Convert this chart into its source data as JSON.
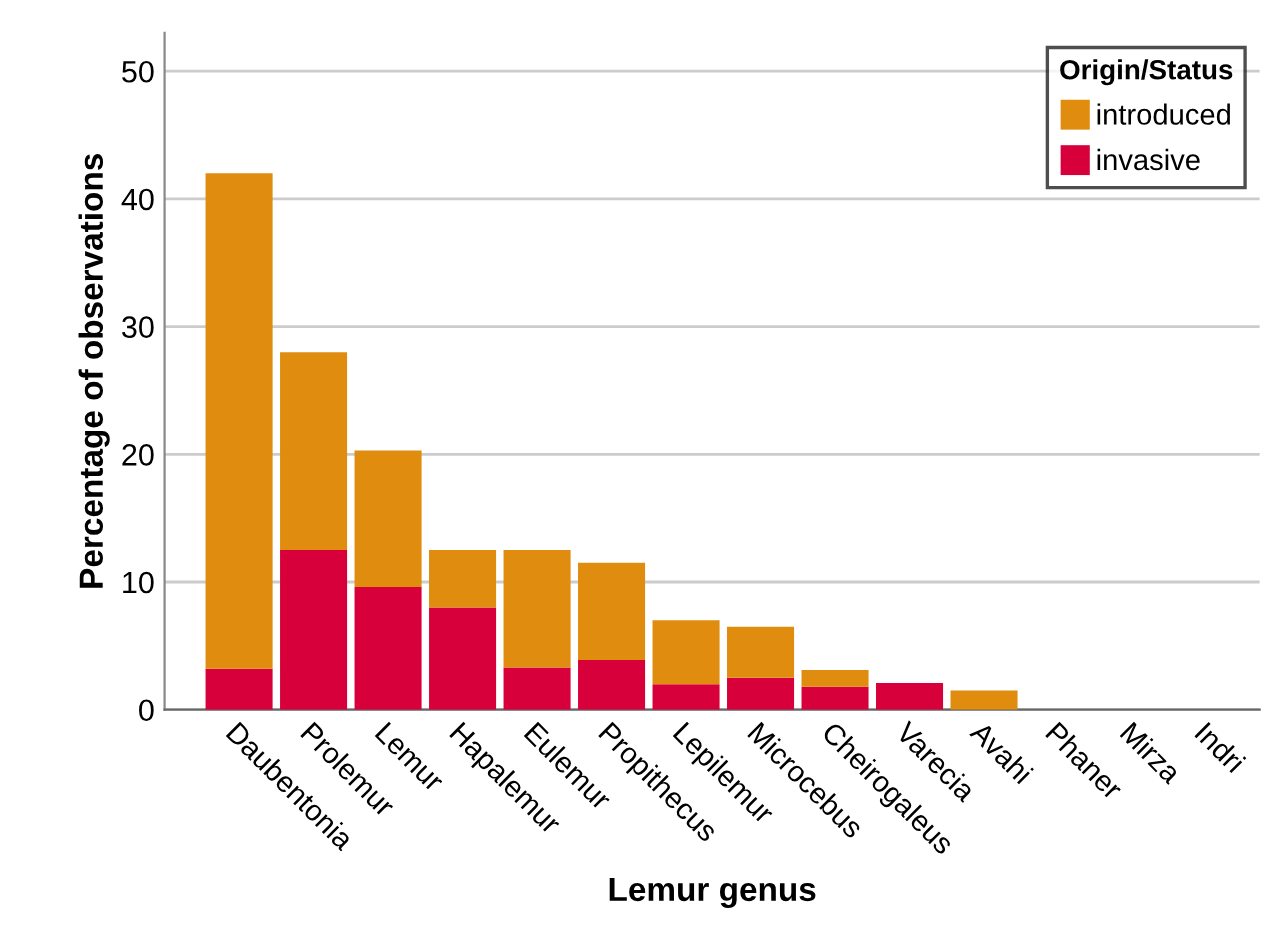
{
  "chart_data": {
    "type": "bar",
    "stacked": true,
    "xlabel": "Lemur genus",
    "ylabel": "Percentage of observations",
    "legend_title": "Origin/Status",
    "categories": [
      "Daubentonia",
      "Prolemur",
      "Lemur",
      "Hapalemur",
      "Eulemur",
      "Propithecus",
      "Lepilemur",
      "Microcebus",
      "Cheirogaleus",
      "Varecia",
      "Avahi",
      "Phaner",
      "Mirza",
      "Indri"
    ],
    "series": [
      {
        "name": "invasive",
        "color": "#d8003a",
        "values": [
          3.2,
          12.5,
          9.6,
          8.0,
          3.3,
          3.9,
          2.0,
          2.5,
          1.8,
          2.1,
          0,
          0,
          0,
          0
        ]
      },
      {
        "name": "introduced",
        "color": "#e08c0e",
        "values": [
          38.8,
          15.5,
          10.7,
          4.5,
          9.2,
          7.6,
          5.0,
          4.0,
          1.3,
          0,
          1.5,
          0,
          0,
          0
        ]
      }
    ],
    "ylim": [
      0,
      53
    ],
    "yticks": [
      0,
      10,
      20,
      30,
      40,
      50
    ],
    "grid": "y",
    "legend": "top right"
  }
}
